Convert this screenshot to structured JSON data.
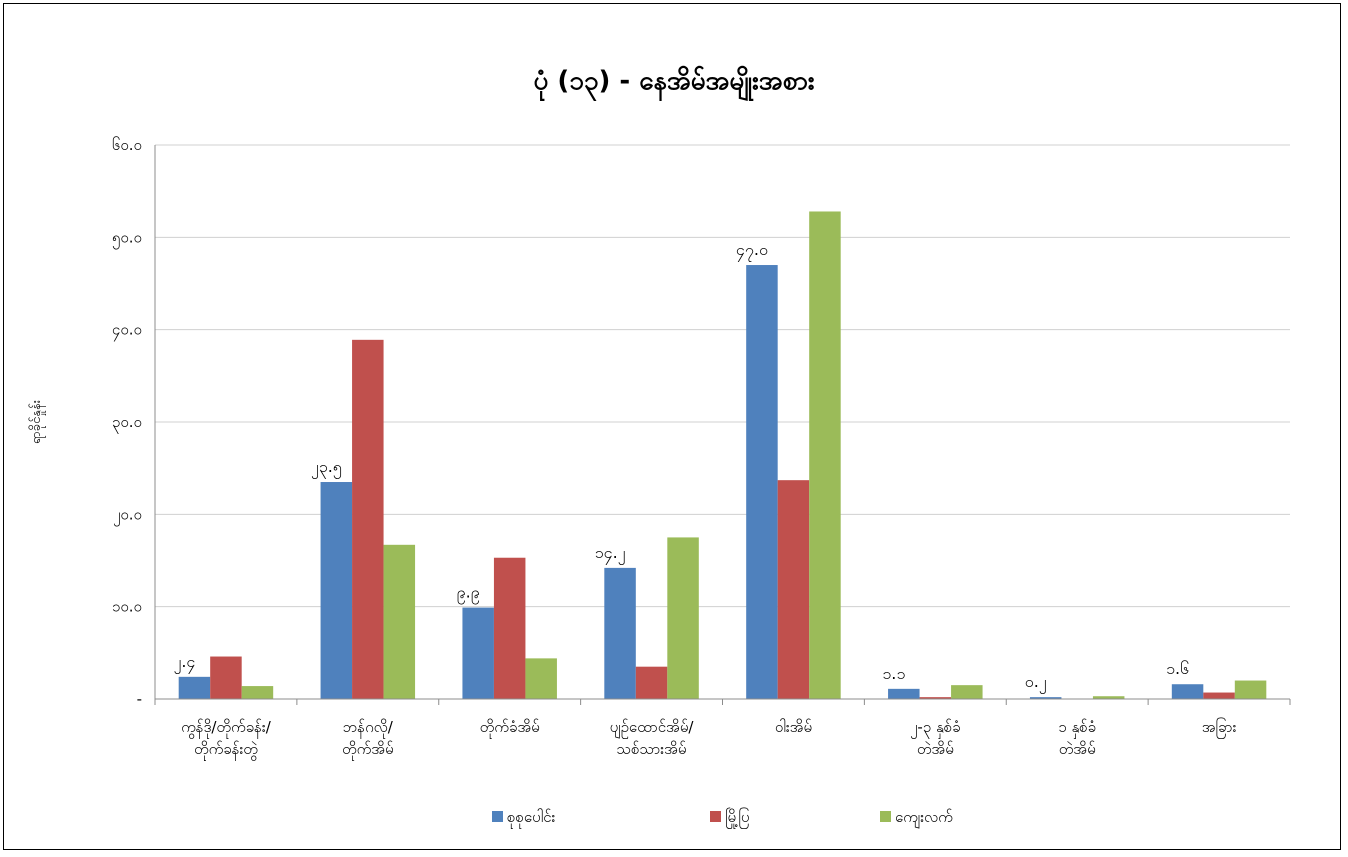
{
  "chart_data": {
    "type": "bar",
    "title": "ပုံ (၁၃) - နေအိမ်အမျိုးအစား",
    "ylabel": "ရာခိုင်နှုန်း",
    "xlabel": "",
    "ylim": [
      0,
      60
    ],
    "yticks": [
      "-",
      "၁၀.၀",
      "၂၀.၀",
      "၃၀.၀",
      "၄၀.၀",
      "၅၀.၀",
      "၆၀.၀"
    ],
    "categories": [
      [
        "ကွန်ဒို/တိုက်ခန်း/",
        "တိုက်ခန်းတွဲ"
      ],
      [
        "ဘန်ဂလို/",
        "တိုက်အိမ်"
      ],
      [
        "တိုက်ခံအိမ်"
      ],
      [
        "ပျဉ်ထောင်အိမ်/",
        "သစ်သားအိမ်"
      ],
      [
        "ဝါးအိမ်"
      ],
      [
        "၂-၃ နှစ်ခံ",
        "တဲအိမ်"
      ],
      [
        "၁ နှစ်ခံ",
        "တဲအိမ်"
      ],
      [
        "အခြား"
      ]
    ],
    "series": [
      {
        "name": "စုစုပေါင်း",
        "color": "#4F81BD",
        "values": [
          2.4,
          23.5,
          9.9,
          14.2,
          47.0,
          1.1,
          0.2,
          1.6
        ]
      },
      {
        "name": "မြို့ပြ",
        "color": "#C0504D",
        "values": [
          4.6,
          38.9,
          15.3,
          3.5,
          23.7,
          0.2,
          0.0,
          0.7
        ]
      },
      {
        "name": "ကျေးလက်",
        "color": "#9BBB59",
        "values": [
          1.4,
          16.7,
          4.4,
          17.5,
          52.8,
          1.5,
          0.3,
          2.0
        ]
      }
    ],
    "data_labels": [
      "၂.၄",
      "၂၃.၅",
      "၉.၉",
      "၁၄.၂",
      "၄၇.၀",
      "၁.၁",
      "၀.၂",
      "၁.၆"
    ],
    "grid": true,
    "legend_position": "bottom"
  }
}
